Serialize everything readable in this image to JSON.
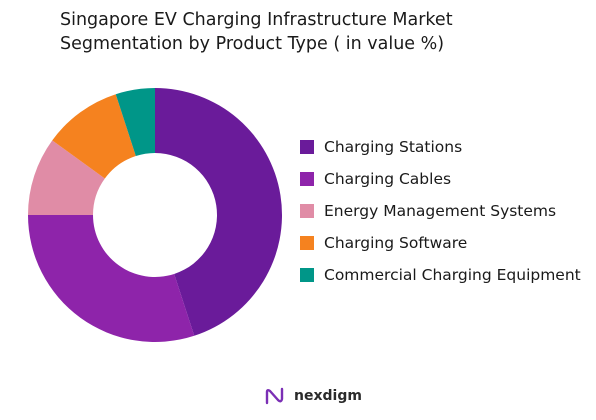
{
  "title": {
    "line1": "Singapore EV Charging Infrastructure Market",
    "line2": "Segmentation by Product Type ( in value %)"
  },
  "chart_data": {
    "type": "pie",
    "donut": true,
    "unit": "%",
    "slices": [
      {
        "name": "Charging Stations",
        "value": 45,
        "color": "#6a1b9a"
      },
      {
        "name": "Charging Cables",
        "value": 30,
        "color": "#8e24aa"
      },
      {
        "name": "Energy Management Systems",
        "value": 10,
        "color": "#e08ca6"
      },
      {
        "name": "Charging Software",
        "value": 10,
        "color": "#f5821f"
      },
      {
        "name": "Commercial Charging Equipment",
        "value": 5,
        "color": "#009688"
      }
    ],
    "legend_position": "right"
  },
  "brand": {
    "name": "nexdigm",
    "icon": "nexdigm-logo-icon",
    "icon_color": "#7b2fb5"
  }
}
